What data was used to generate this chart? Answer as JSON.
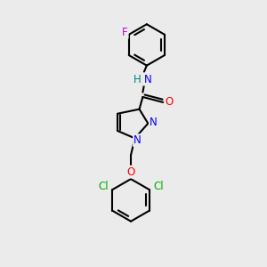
{
  "background_color": "#ebebeb",
  "bond_color": "#000000",
  "line_width": 1.5,
  "atom_colors": {
    "N": "#0000ff",
    "O": "#ff0000",
    "F": "#cc00cc",
    "Cl": "#00aa00",
    "C": "#000000",
    "H": "#008080"
  },
  "font_size": 8.5,
  "figsize": [
    3.0,
    3.0
  ],
  "dpi": 100
}
